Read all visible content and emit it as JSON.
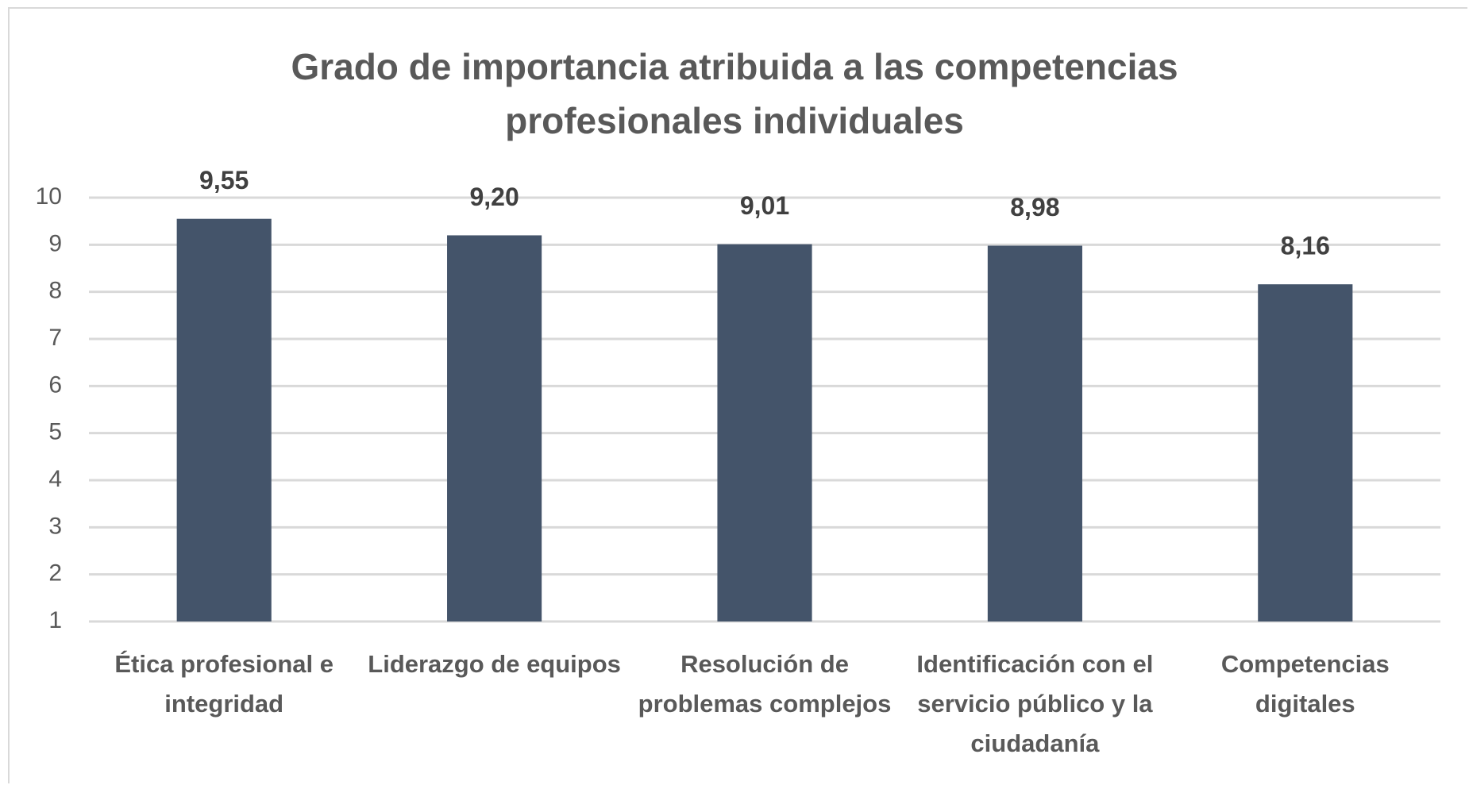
{
  "chart_data": {
    "type": "bar",
    "title": "Grado de importancia atribuida a las competencias profesionales individuales",
    "categories": [
      "Ética profesional e integridad",
      "Liderazgo de equipos",
      "Resolución de problemas complejos",
      "Identificación con el servicio público y la ciudadanía",
      "Competencias digitales"
    ],
    "values": [
      9.55,
      9.2,
      9.01,
      8.98,
      8.16
    ],
    "value_labels": [
      "9,55",
      "9,20",
      "9,01",
      "8,98",
      "8,16"
    ],
    "color": "#44546a",
    "ylim": [
      1,
      10
    ],
    "yticks": [
      1,
      2,
      3,
      4,
      5,
      6,
      7,
      8,
      9,
      10
    ],
    "grid": true
  }
}
